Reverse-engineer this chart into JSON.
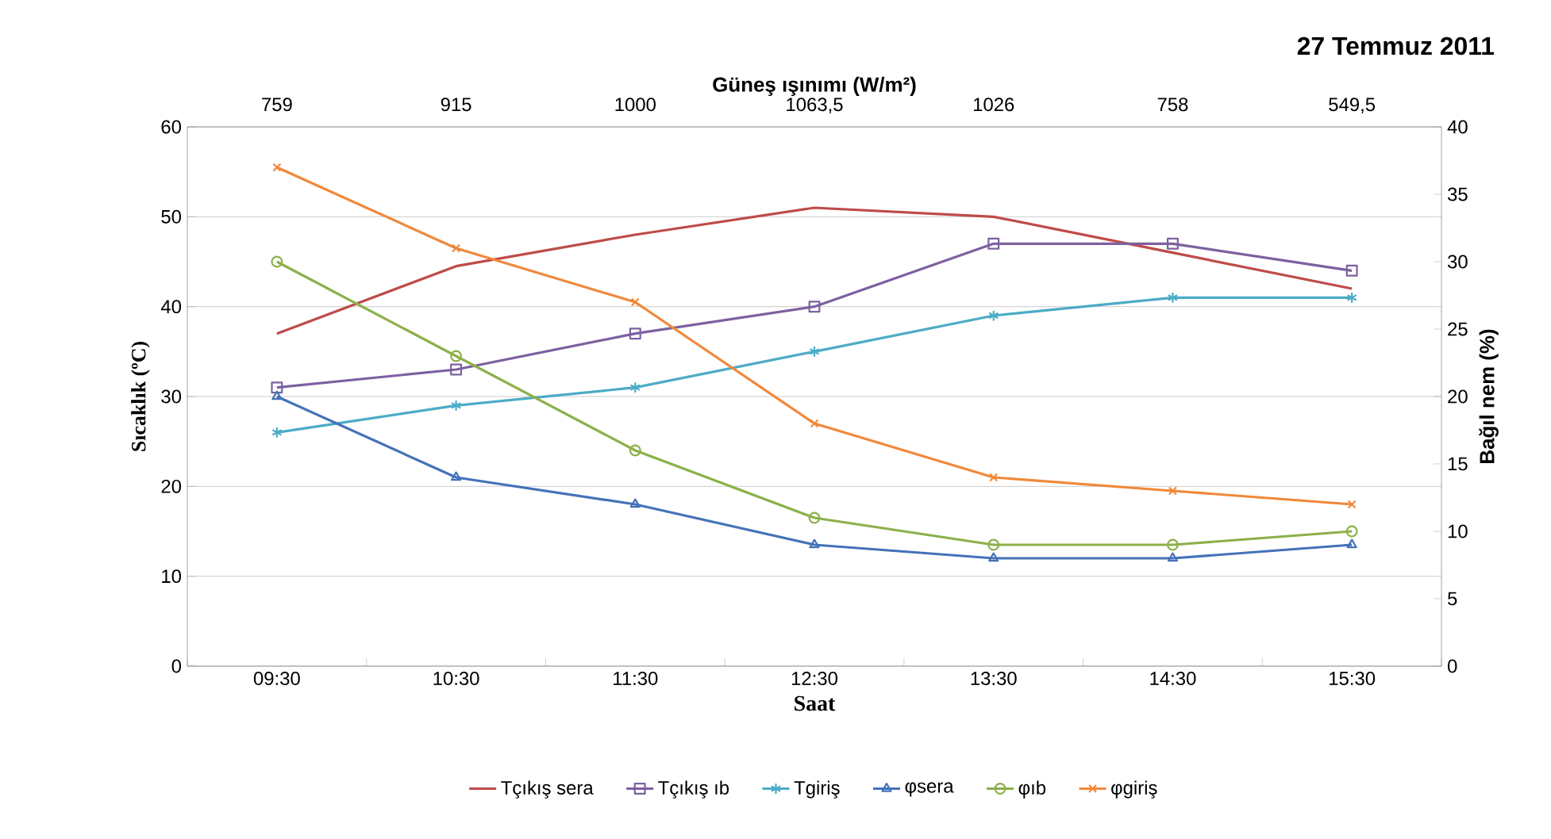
{
  "chart_data": {
    "type": "line",
    "title": "27 Temmuz 2011",
    "xlabel": "Saat",
    "ylabel": "Sıcaklık (ºC)",
    "y2label": "Bağıl nem (%)",
    "x2label": "Güneş ışınımı (W/m²)",
    "categories": [
      "09:30",
      "10:30",
      "11:30",
      "12:30",
      "13:30",
      "14:30",
      "15:30"
    ],
    "ylim": [
      0,
      60
    ],
    "yticks": [
      0,
      10,
      20,
      30,
      40,
      50,
      60
    ],
    "y2lim": [
      0,
      40
    ],
    "y2ticks": [
      0,
      5,
      10,
      15,
      20,
      25,
      30,
      35,
      40
    ],
    "annotations": [
      "759",
      "915",
      "1000",
      "1063,5",
      "1026",
      "758",
      "549,5"
    ],
    "grid": "y",
    "legend": "bottom",
    "series": [
      {
        "name": "Tçıkış sera",
        "color": "#be4b48",
        "marker": "none",
        "values": [
          37,
          44.5,
          48,
          51,
          50,
          46,
          42
        ]
      },
      {
        "name": "Tçıkış ıb",
        "color": "#7d60a0",
        "marker": "square",
        "values": [
          31,
          33,
          37,
          40,
          47,
          47,
          44
        ]
      },
      {
        "name": "Tgiriş",
        "color": "#4bacc6",
        "marker": "cross",
        "values": [
          26,
          29,
          31,
          35,
          39,
          41,
          41
        ]
      },
      {
        "name": "φsera",
        "color": "#4472b8",
        "marker": "triangle",
        "axis": "y2",
        "values": [
          20,
          14,
          12,
          9,
          8,
          8,
          9
        ]
      },
      {
        "name": "φıb",
        "color": "#8cb04a",
        "marker": "circle",
        "axis": "y2",
        "values": [
          30,
          23,
          16,
          11,
          9,
          9,
          10
        ]
      },
      {
        "name": "φgiriş",
        "color": "#f0883a",
        "marker": "cross",
        "axis": "y2",
        "values": [
          37,
          31,
          27,
          18,
          14,
          13,
          12
        ]
      }
    ]
  }
}
